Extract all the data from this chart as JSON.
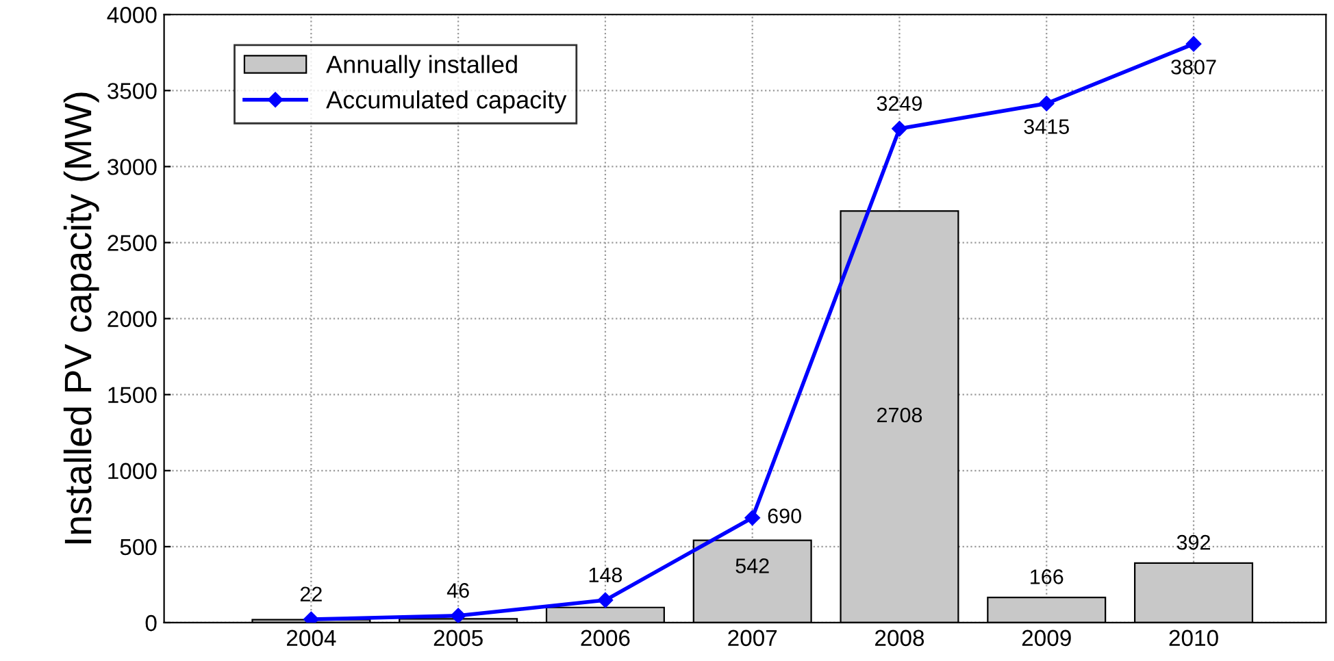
{
  "chart_data": {
    "type": "bar",
    "ylabel": "Installed PV capacity (MW)",
    "categories": [
      "2004",
      "2005",
      "2006",
      "2007",
      "2008",
      "2009",
      "2010"
    ],
    "series": [
      {
        "name": "Annually installed",
        "color": "#c8c8c8",
        "values": [
          20,
          25,
          100,
          542,
          2708,
          166,
          392
        ],
        "value_labels": [
          null,
          null,
          null,
          "542",
          "2708",
          "166",
          "392"
        ]
      },
      {
        "name": "Accumulated capacity",
        "type": "line",
        "color": "#0000ff",
        "marker": "diamond",
        "values": [
          22,
          46,
          148,
          690,
          3249,
          3415,
          3807
        ],
        "value_labels": [
          "22",
          "46",
          "148",
          "690",
          "3249",
          "3415",
          "3807"
        ]
      }
    ],
    "ylim": [
      0,
      4000
    ],
    "yticks": [
      0,
      500,
      1000,
      1500,
      2000,
      2500,
      3000,
      3500,
      4000
    ],
    "grid": true,
    "legend": "top left"
  }
}
